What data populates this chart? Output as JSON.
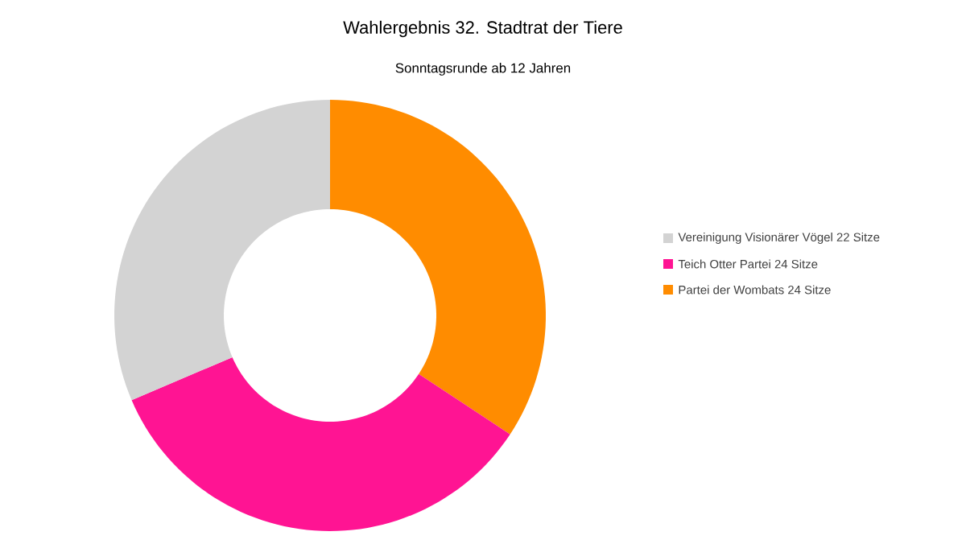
{
  "chart_data": {
    "type": "donut",
    "title": "Wahlergebnis 32. Stadtrat der Tiere",
    "subtitle": "Sonntagsrunde ab 12 Jahren",
    "categories": [
      "Vereinigung Visionärer Vögel 22 Sitze",
      "Teich Otter Partei 24 Sitze",
      "Partei der Wombats 24 Sitze"
    ],
    "values": [
      22,
      24,
      24
    ],
    "colors": [
      "#d3d3d3",
      "#ff1493",
      "#ff8c00"
    ],
    "legend": "right"
  }
}
